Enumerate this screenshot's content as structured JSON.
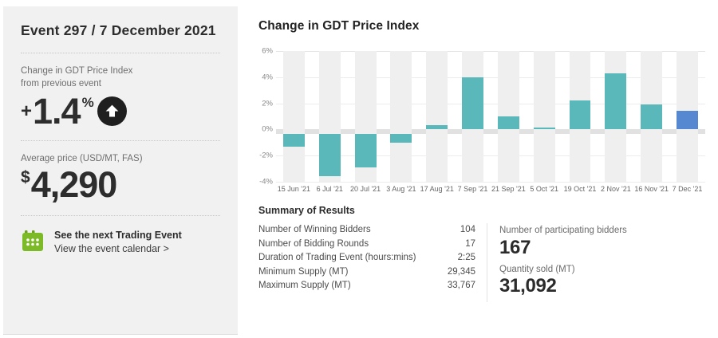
{
  "left_panel": {
    "title": "Event 297 / 7 December 2021",
    "change": {
      "label_line1": "Change in GDT Price Index",
      "label_line2": "from previous event",
      "sign": "+",
      "value": "1.4",
      "unit": "%",
      "direction": "up"
    },
    "average_price": {
      "label": "Average price (USD/MT, FAS)",
      "currency": "$",
      "value": "4,290"
    },
    "next_event": {
      "line1": "See the next Trading Event",
      "line2": "View the event calendar >",
      "icon": "calendar-icon",
      "icon_color": "#7cba28"
    }
  },
  "main": {
    "chart_title": "Change in GDT Price Index",
    "summary": {
      "heading": "Summary of Results",
      "rows": [
        {
          "label": "Number of Winning Bidders",
          "value": "104"
        },
        {
          "label": "Number of Bidding Rounds",
          "value": "17"
        },
        {
          "label": "Duration of Trading Event (hours:mins)",
          "value": "2:25"
        },
        {
          "label": "Minimum Supply (MT)",
          "value": "29,345"
        },
        {
          "label": "Maximum Supply (MT)",
          "value": "33,767"
        }
      ],
      "stats": [
        {
          "label": "Number of participating bidders",
          "value": "167"
        },
        {
          "label": "Quantity sold (MT)",
          "value": "31,092"
        }
      ]
    }
  },
  "chart_data": {
    "type": "bar",
    "title": "Change in GDT Price Index",
    "categories": [
      "15 Jun '21",
      "6 Jul '21",
      "20 Jul '21",
      "3 Aug '21",
      "17 Aug '21",
      "7 Sep '21",
      "21 Sep '21",
      "5 Oct '21",
      "19 Oct '21",
      "2 Nov '21",
      "16 Nov '21",
      "7 Dec '21"
    ],
    "values": [
      -1.3,
      -3.6,
      -2.9,
      -1.0,
      0.3,
      4.0,
      1.0,
      0.1,
      2.2,
      4.3,
      1.9,
      1.4
    ],
    "unit": "%",
    "ylim": [
      -4,
      6
    ],
    "ytick_step": 2,
    "yticks": [
      "6%",
      "4%",
      "2%",
      "0%",
      "-2%",
      "-4%"
    ],
    "grid": true,
    "legend": "none",
    "bar_color": "#5ab8bb",
    "highlight_index": 11,
    "highlight_color": "#5688d2",
    "column_band_color": "#efefef",
    "zero_band_color": "#e1e1e1"
  },
  "colors": {
    "panel_bg": "#f1f1f2",
    "dark_text": "#2d2d2d",
    "gray_text": "#6e6e6e",
    "teal": "#5ab8bb",
    "blue": "#5688d2",
    "green": "#7cba28"
  }
}
